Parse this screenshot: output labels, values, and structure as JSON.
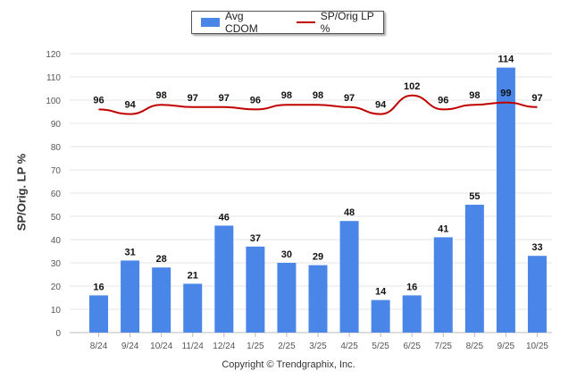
{
  "chart_data": {
    "type": "bar",
    "categories": [
      "8/24",
      "9/24",
      "10/24",
      "11/24",
      "12/24",
      "1/25",
      "2/25",
      "3/25",
      "4/25",
      "5/25",
      "6/25",
      "7/25",
      "8/25",
      "9/25",
      "10/25"
    ],
    "series": [
      {
        "name": "Avg CDOM",
        "kind": "bar",
        "values": [
          16,
          31,
          28,
          21,
          46,
          37,
          30,
          29,
          48,
          14,
          16,
          41,
          55,
          114,
          33
        ]
      },
      {
        "name": "SP/Orig LP %",
        "kind": "line",
        "values": [
          96,
          94,
          98,
          97,
          97,
          96,
          98,
          98,
          97,
          94,
          102,
          96,
          98,
          99,
          97
        ]
      }
    ],
    "title": "",
    "xlabel": "",
    "ylabel": "SP/Orig. LP %",
    "ylim": [
      0,
      120
    ],
    "yticks": [
      0,
      10,
      20,
      30,
      40,
      50,
      60,
      70,
      80,
      90,
      100,
      110,
      120
    ],
    "grid": true,
    "legend_position": "top-center"
  },
  "colors": {
    "bar": "#4a86e8",
    "line": "#c00000",
    "grid": "#e6e6e6"
  },
  "footer": "Copyright © Trendgraphix, Inc."
}
